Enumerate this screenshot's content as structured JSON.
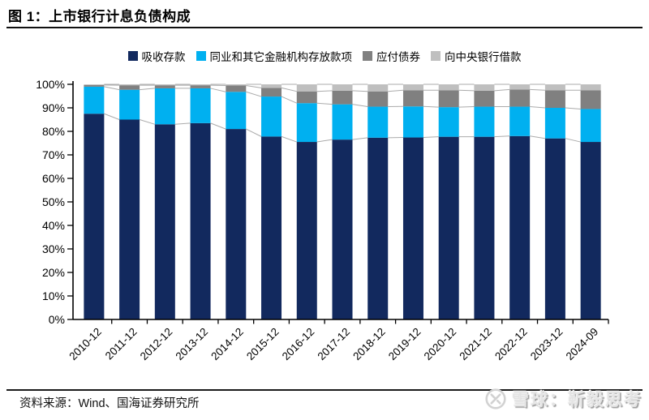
{
  "header": {
    "title": "图 1：上市银行计息负债构成"
  },
  "footer": {
    "source": "资料来源：Wind、国海证券研究所",
    "watermark": "雪球：靳毅思考",
    "watermark_logo": "xueqiu-snowball-icon"
  },
  "colors": {
    "deposits": "#12295E",
    "interbank": "#00B0F0",
    "bonds_payable": "#808080",
    "central_bank_borrowing": "#BFBFBF",
    "axis": "#000000",
    "connector_line": "#ABABAB"
  },
  "chart_data": {
    "type": "bar",
    "stacked": true,
    "percent_stacked": true,
    "title": "上市银行计息负债构成",
    "xlabel": "",
    "ylabel": "",
    "ylim": [
      0,
      100
    ],
    "grid": false,
    "legend_position": "top",
    "connector_lines": true,
    "x_tick_rotation": -45,
    "y_ticks": [
      "100%",
      "90%",
      "80%",
      "70%",
      "60%",
      "50%",
      "40%",
      "30%",
      "20%",
      "10%",
      "0%"
    ],
    "categories": [
      "2010-12",
      "2011-12",
      "2012-12",
      "2013-12",
      "2014-12",
      "2015-12",
      "2016-12",
      "2017-12",
      "2018-12",
      "2019-12",
      "2020-12",
      "2021-12",
      "2022-12",
      "2023-12",
      "2024-09"
    ],
    "series": [
      {
        "name": "吸收存款",
        "color": "#12295E",
        "values": [
          87.5,
          85.0,
          83.0,
          83.5,
          81.0,
          77.8,
          75.5,
          76.5,
          77.3,
          77.4,
          77.7,
          77.7,
          78.0,
          77.0,
          75.5
        ]
      },
      {
        "name": "同业和其它金融机构存放款项",
        "color": "#00B0F0",
        "values": [
          11.5,
          12.7,
          15.3,
          14.8,
          15.8,
          17.0,
          16.5,
          15.0,
          13.2,
          13.2,
          12.6,
          12.8,
          12.5,
          13.0,
          14.0
        ]
      },
      {
        "name": "应付债券",
        "color": "#808080",
        "values": [
          0.7,
          1.9,
          1.3,
          1.3,
          2.7,
          3.7,
          5.0,
          5.8,
          6.5,
          6.9,
          7.2,
          6.8,
          7.3,
          7.5,
          8.0
        ]
      },
      {
        "name": "向中央银行借款",
        "color": "#BFBFBF",
        "values": [
          0.3,
          0.4,
          0.4,
          0.4,
          0.5,
          1.5,
          3.0,
          2.7,
          3.0,
          2.5,
          2.5,
          2.7,
          2.2,
          2.5,
          2.5
        ]
      }
    ]
  }
}
